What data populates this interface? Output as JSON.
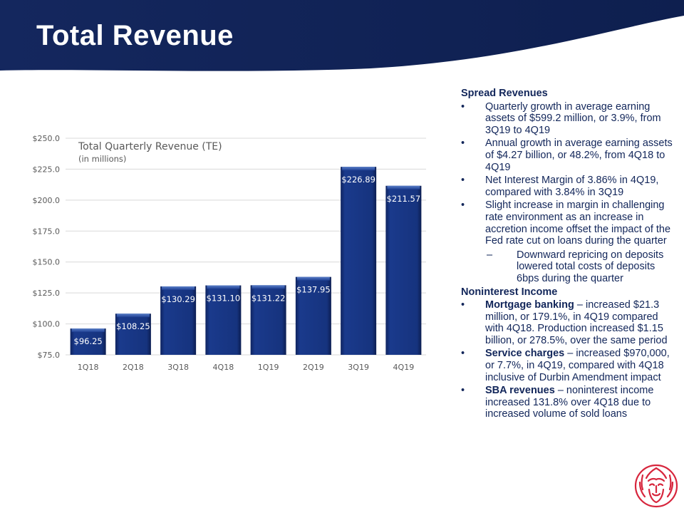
{
  "page_title": "Total Revenue",
  "colors": {
    "navy": "#12265a",
    "bar": "#13307a",
    "logo": "#d7263d"
  },
  "chart_data": {
    "type": "bar",
    "title": "Total Quarterly Revenue (TE)",
    "subtitle": "(in millions)",
    "categories": [
      "1Q18",
      "2Q18",
      "3Q18",
      "4Q18",
      "1Q19",
      "2Q19",
      "3Q19",
      "4Q19"
    ],
    "values": [
      96.25,
      108.25,
      130.29,
      131.1,
      131.22,
      137.95,
      226.89,
      211.57
    ],
    "value_labels": [
      "$96.25",
      "$108.25",
      "$130.29",
      "$131.10",
      "$131.22",
      "$137.95",
      "$226.89",
      "$211.57"
    ],
    "y_ticks": [
      "$75.0",
      "$100.0",
      "$125.0",
      "$150.0",
      "$175.0",
      "$200.0",
      "$225.0",
      "$250.0"
    ],
    "ylim": [
      75,
      250
    ],
    "grid": true,
    "xlabel": "",
    "ylabel": ""
  },
  "spread": {
    "heading": "Spread Revenues",
    "bullets": [
      "Quarterly growth in average earning assets of $599.2 million, or 3.9%, from 3Q19 to 4Q19",
      "Annual growth in average earning assets of $4.27 billion, or 48.2%, from 4Q18 to 4Q19",
      "Net Interest Margin of 3.86% in 4Q19, compared with 3.84% in 3Q19",
      "Slight increase in margin in challenging rate environment as an increase in accretion income offset the impact of the Fed rate cut on loans during the quarter"
    ],
    "sub_bullet": "Downward repricing on deposits lowered total costs of deposits 6bps during the quarter"
  },
  "nonint": {
    "heading": "Noninterest Income",
    "items": [
      {
        "bold": "Mortgage banking",
        "text": " – increased $21.3 million, or 179.1%, in 4Q19 compared with 4Q18.  Production increased $1.15 billion, or 278.5%, over the same period"
      },
      {
        "bold": "Service charges",
        "text": " – increased $970,000, or 7.7%, in 4Q19, compared with 4Q18 inclusive of Durbin Amendment impact"
      },
      {
        "bold": "SBA revenues",
        "text": " – noninterest income increased 131.8% over 4Q18 due to increased volume of sold loans"
      }
    ]
  },
  "bullet_mark": "•",
  "dash_mark": "–",
  "logo_icon": "lion-head-logo-icon"
}
